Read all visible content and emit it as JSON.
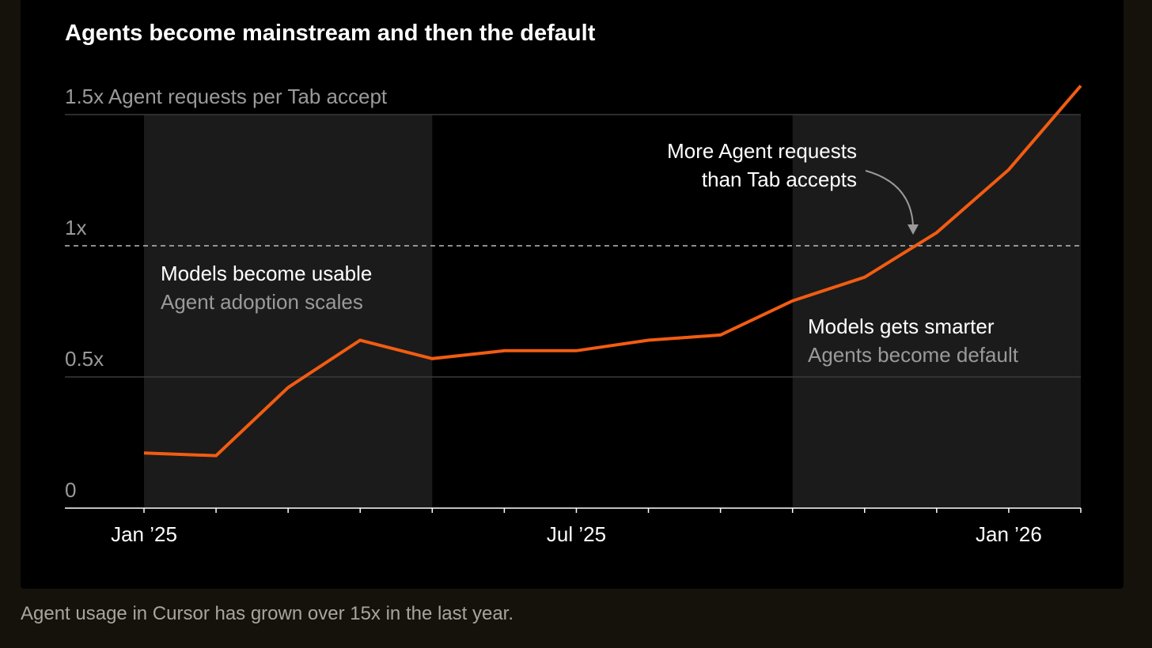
{
  "caption": "Agent usage in Cursor has grown over 15x in the last year.",
  "colors": {
    "line": "#f25c12",
    "shade": "#1b1b1b",
    "background": "#000000",
    "page": "#14120b"
  },
  "chart_data": {
    "type": "line",
    "title": "Agents become mainstream and then the default",
    "ylabel": "Agent requests per Tab accept",
    "ylim": [
      0,
      1.5
    ],
    "y_ticks": [
      {
        "value": 0,
        "label": "0"
      },
      {
        "value": 0.5,
        "label": "0.5x"
      },
      {
        "value": 1,
        "label": "1x"
      },
      {
        "value": 1.5,
        "label": "1.5x"
      }
    ],
    "x_start": "2025-01",
    "x_end": "2026-02",
    "x_tick_labels": [
      {
        "x": "2025-01",
        "label": "Jan ’25"
      },
      {
        "x": "2025-07",
        "label": "Jul ’25"
      },
      {
        "x": "2026-01",
        "label": "Jan ’26"
      }
    ],
    "x": [
      "2025-01",
      "2025-02",
      "2025-03",
      "2025-04",
      "2025-05",
      "2025-06",
      "2025-07",
      "2025-08",
      "2025-09",
      "2025-10",
      "2025-11",
      "2025-12",
      "2026-01",
      "2026-02"
    ],
    "values": [
      0.21,
      0.2,
      0.46,
      0.64,
      0.57,
      0.6,
      0.6,
      0.64,
      0.66,
      0.79,
      0.88,
      1.05,
      1.29,
      1.61
    ],
    "reference_line": {
      "value": 1,
      "style": "dashed"
    },
    "shaded_periods": [
      {
        "from": "2025-01",
        "to": "2025-05"
      },
      {
        "from": "2025-10",
        "to": "2026-02"
      }
    ],
    "annotations": [
      {
        "id": "usable",
        "title": "Models become usable",
        "subtitle": "Agent adoption scales"
      },
      {
        "id": "smarter",
        "title": "Models gets smarter",
        "subtitle": "Agents become default"
      },
      {
        "id": "crossover",
        "lines": [
          "More Agent requests",
          "than Tab accepts"
        ],
        "points_to": "2025-12"
      }
    ]
  }
}
